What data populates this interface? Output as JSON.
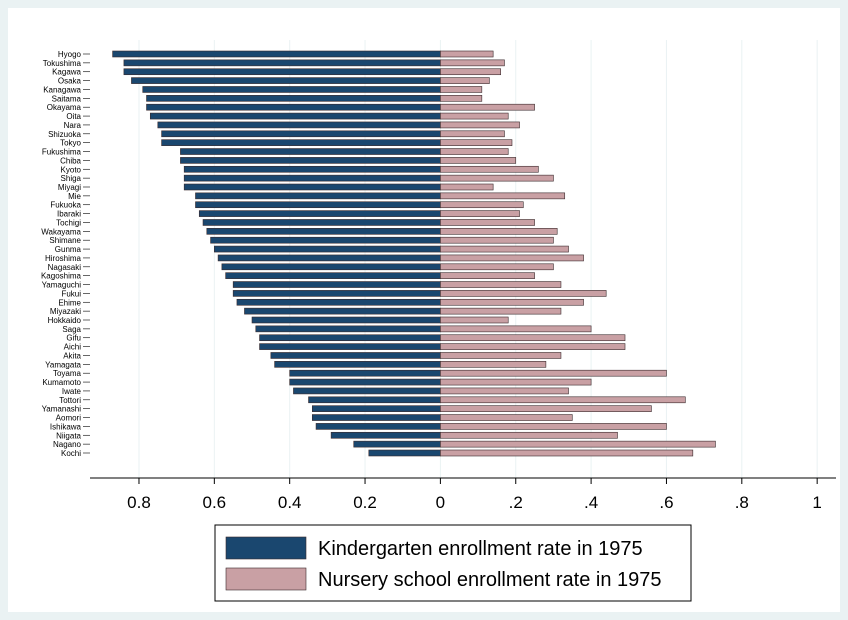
{
  "chart_data": {
    "type": "diverging-bar",
    "categories": [
      "Hyogo",
      "Tokushima",
      "Kagawa",
      "Osaka",
      "Kanagawa",
      "Saitama",
      "Okayama",
      "Oita",
      "Nara",
      "Shizuoka",
      "Tokyo",
      "Fukushima",
      "Chiba",
      "Kyoto",
      "Shiga",
      "Miyagi",
      "Mie",
      "Fukuoka",
      "Ibaraki",
      "Tochigi",
      "Wakayama",
      "Shimane",
      "Gunma",
      "Hiroshima",
      "Nagasaki",
      "Kagoshima",
      "Yamaguchi",
      "Fukui",
      "Ehime",
      "Miyazaki",
      "Hokkaido",
      "Saga",
      "Gifu",
      "Aichi",
      "Akita",
      "Yamagata",
      "Toyama",
      "Kumamoto",
      "Iwate",
      "Tottori",
      "Yamanashi",
      "Aomori",
      "Ishikawa",
      "Niigata",
      "Nagano",
      "Kochi"
    ],
    "series": [
      {
        "name": "Kindergarten enrollment rate in 1975",
        "color": "#1a476f",
        "side": "left",
        "values": [
          0.87,
          0.84,
          0.84,
          0.82,
          0.79,
          0.78,
          0.78,
          0.77,
          0.75,
          0.74,
          0.74,
          0.69,
          0.69,
          0.68,
          0.68,
          0.68,
          0.65,
          0.65,
          0.64,
          0.63,
          0.62,
          0.61,
          0.6,
          0.59,
          0.58,
          0.57,
          0.55,
          0.55,
          0.54,
          0.52,
          0.5,
          0.49,
          0.48,
          0.48,
          0.45,
          0.44,
          0.4,
          0.4,
          0.39,
          0.35,
          0.34,
          0.34,
          0.33,
          0.29,
          0.23,
          0.19
        ]
      },
      {
        "name": "Nursery school enrollment rate in 1975",
        "color": "#c9a0a4",
        "side": "right",
        "values": [
          0.14,
          0.17,
          0.16,
          0.13,
          0.11,
          0.11,
          0.25,
          0.18,
          0.21,
          0.17,
          0.19,
          0.18,
          0.2,
          0.26,
          0.3,
          0.14,
          0.33,
          0.22,
          0.21,
          0.25,
          0.31,
          0.3,
          0.34,
          0.38,
          0.3,
          0.25,
          0.32,
          0.44,
          0.38,
          0.32,
          0.18,
          0.4,
          0.49,
          0.49,
          0.32,
          0.28,
          0.6,
          0.4,
          0.34,
          0.65,
          0.56,
          0.35,
          0.6,
          0.47,
          0.73,
          0.67
        ]
      }
    ],
    "xlim": [
      -0.93,
      1.05
    ],
    "xticks": [
      {
        "value": -0.8,
        "label": "0.8"
      },
      {
        "value": -0.6,
        "label": "0.6"
      },
      {
        "value": -0.4,
        "label": "0.4"
      },
      {
        "value": -0.2,
        "label": "0.2"
      },
      0,
      {
        "value": 0.2,
        "label": ".2"
      },
      {
        "value": 0.4,
        "label": ".4"
      },
      {
        "value": 0.6,
        "label": ".6"
      },
      {
        "value": 0.8,
        "label": ".8"
      },
      1
    ],
    "grid": true
  }
}
